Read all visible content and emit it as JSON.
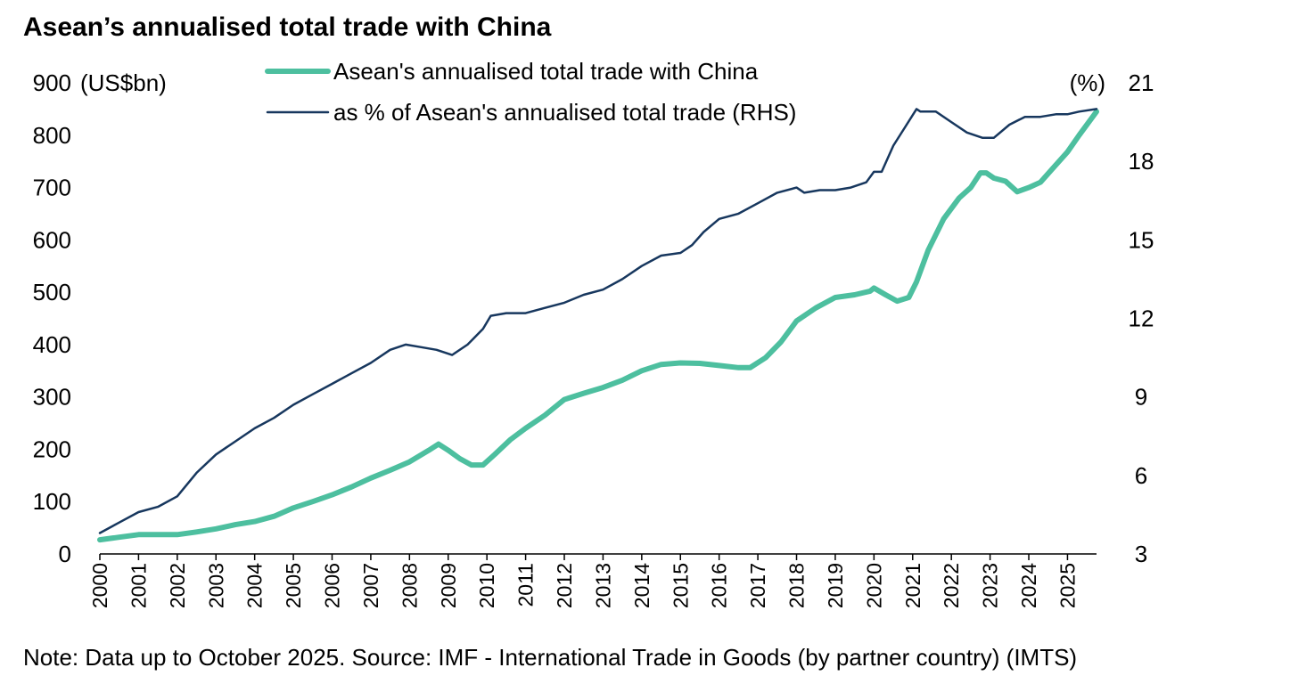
{
  "chart_data": {
    "type": "line",
    "title": "Asean’s annualised total trade with China",
    "note": "Note: Data up to October 2025. Source: IMF - International Trade in Goods (by partner country) (IMTS)",
    "x_range": [
      2000,
      2025.75
    ],
    "x_ticks": [
      "2000",
      "2001",
      "2002",
      "2003",
      "2004",
      "2005",
      "2006",
      "2007",
      "2008",
      "2009",
      "2010",
      "2011",
      "2012",
      "2013",
      "2014",
      "2015",
      "2016",
      "2017",
      "2018",
      "2019",
      "2020",
      "2021",
      "2022",
      "2023",
      "2024",
      "2025"
    ],
    "left_axis": {
      "label": "(US$bn)",
      "range": [
        0,
        900
      ],
      "ticks": [
        "0",
        "100",
        "200",
        "300",
        "400",
        "500",
        "600",
        "700",
        "800",
        "900"
      ]
    },
    "right_axis": {
      "label": "(%)",
      "range": [
        3,
        21
      ],
      "ticks": [
        "3",
        "6",
        "9",
        "12",
        "15",
        "18",
        "21"
      ]
    },
    "series": [
      {
        "name": "Asean's annualised total trade with China",
        "axis": "left",
        "color": "#4dbf9f",
        "points": [
          [
            2000,
            27
          ],
          [
            2000.5,
            32
          ],
          [
            2001,
            37
          ],
          [
            2001.5,
            37
          ],
          [
            2002,
            37
          ],
          [
            2002.5,
            42
          ],
          [
            2003,
            48
          ],
          [
            2003.5,
            56
          ],
          [
            2004,
            62
          ],
          [
            2004.5,
            72
          ],
          [
            2005,
            88
          ],
          [
            2005.5,
            100
          ],
          [
            2006,
            113
          ],
          [
            2006.5,
            128
          ],
          [
            2007,
            145
          ],
          [
            2007.5,
            160
          ],
          [
            2008,
            176
          ],
          [
            2008.5,
            198
          ],
          [
            2008.75,
            210
          ],
          [
            2009,
            198
          ],
          [
            2009.3,
            182
          ],
          [
            2009.6,
            170
          ],
          [
            2009.9,
            170
          ],
          [
            2010.2,
            190
          ],
          [
            2010.6,
            218
          ],
          [
            2011,
            240
          ],
          [
            2011.5,
            265
          ],
          [
            2012,
            295
          ],
          [
            2012.5,
            307
          ],
          [
            2013,
            318
          ],
          [
            2013.5,
            332
          ],
          [
            2014,
            350
          ],
          [
            2014.5,
            362
          ],
          [
            2015,
            365
          ],
          [
            2015.5,
            364
          ],
          [
            2016,
            360
          ],
          [
            2016.5,
            356
          ],
          [
            2016.8,
            356
          ],
          [
            2017.2,
            375
          ],
          [
            2017.6,
            405
          ],
          [
            2018,
            445
          ],
          [
            2018.5,
            470
          ],
          [
            2019,
            490
          ],
          [
            2019.5,
            495
          ],
          [
            2019.9,
            502
          ],
          [
            2020,
            508
          ],
          [
            2020.3,
            495
          ],
          [
            2020.6,
            483
          ],
          [
            2020.9,
            490
          ],
          [
            2021.1,
            520
          ],
          [
            2021.4,
            580
          ],
          [
            2021.8,
            640
          ],
          [
            2022.2,
            680
          ],
          [
            2022.5,
            700
          ],
          [
            2022.75,
            728
          ],
          [
            2022.9,
            728
          ],
          [
            2023.1,
            718
          ],
          [
            2023.4,
            712
          ],
          [
            2023.7,
            692
          ],
          [
            2024,
            700
          ],
          [
            2024.3,
            710
          ],
          [
            2024.6,
            735
          ],
          [
            2025,
            768
          ],
          [
            2025.3,
            800
          ],
          [
            2025.75,
            845
          ]
        ]
      },
      {
        "name": "as % of Asean's annualised total trade (RHS)",
        "axis": "right",
        "color": "#17375e",
        "points": [
          [
            2000,
            3.8
          ],
          [
            2000.5,
            4.2
          ],
          [
            2001,
            4.6
          ],
          [
            2001.5,
            4.8
          ],
          [
            2002,
            5.2
          ],
          [
            2002.5,
            6.1
          ],
          [
            2003,
            6.8
          ],
          [
            2003.5,
            7.3
          ],
          [
            2004,
            7.8
          ],
          [
            2004.5,
            8.2
          ],
          [
            2005,
            8.7
          ],
          [
            2005.5,
            9.1
          ],
          [
            2006,
            9.5
          ],
          [
            2006.5,
            9.9
          ],
          [
            2007,
            10.3
          ],
          [
            2007.5,
            10.8
          ],
          [
            2007.9,
            11.0
          ],
          [
            2008.3,
            10.9
          ],
          [
            2008.7,
            10.8
          ],
          [
            2009.1,
            10.6
          ],
          [
            2009.5,
            11.0
          ],
          [
            2009.9,
            11.6
          ],
          [
            2010.1,
            12.1
          ],
          [
            2010.5,
            12.2
          ],
          [
            2011,
            12.2
          ],
          [
            2011.5,
            12.4
          ],
          [
            2012,
            12.6
          ],
          [
            2012.5,
            12.9
          ],
          [
            2013,
            13.1
          ],
          [
            2013.5,
            13.5
          ],
          [
            2014,
            14.0
          ],
          [
            2014.5,
            14.4
          ],
          [
            2015,
            14.5
          ],
          [
            2015.3,
            14.8
          ],
          [
            2015.6,
            15.3
          ],
          [
            2016,
            15.8
          ],
          [
            2016.5,
            16.0
          ],
          [
            2017,
            16.4
          ],
          [
            2017.5,
            16.8
          ],
          [
            2018,
            17.0
          ],
          [
            2018.2,
            16.8
          ],
          [
            2018.6,
            16.9
          ],
          [
            2019,
            16.9
          ],
          [
            2019.4,
            17.0
          ],
          [
            2019.8,
            17.2
          ],
          [
            2020,
            17.6
          ],
          [
            2020.2,
            17.6
          ],
          [
            2020.5,
            18.6
          ],
          [
            2020.8,
            19.3
          ],
          [
            2021.1,
            20.0
          ],
          [
            2021.2,
            19.9
          ],
          [
            2021.6,
            19.9
          ],
          [
            2022,
            19.5
          ],
          [
            2022.4,
            19.1
          ],
          [
            2022.8,
            18.9
          ],
          [
            2023.1,
            18.9
          ],
          [
            2023.5,
            19.4
          ],
          [
            2023.9,
            19.7
          ],
          [
            2024.3,
            19.7
          ],
          [
            2024.7,
            19.8
          ],
          [
            2025,
            19.8
          ],
          [
            2025.3,
            19.9
          ],
          [
            2025.75,
            20.0
          ]
        ]
      }
    ],
    "legend_position": "top-center",
    "grid": false
  }
}
